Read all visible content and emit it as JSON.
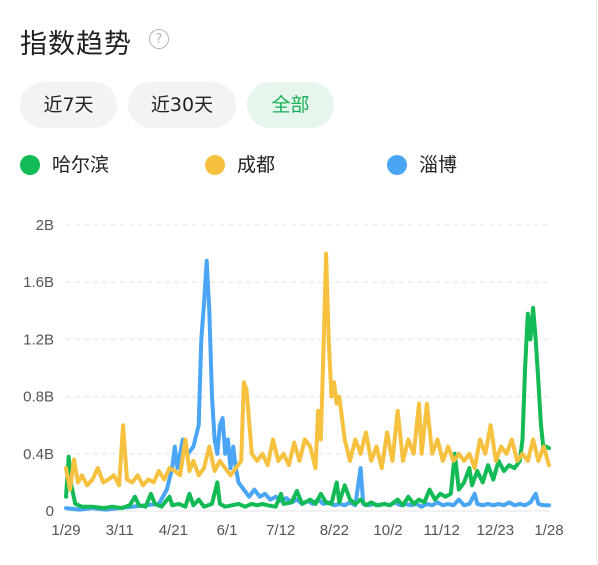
{
  "header": {
    "title": "指数趋势",
    "help_glyph": "?"
  },
  "tabs": [
    {
      "label": "近7天",
      "active": false
    },
    {
      "label": "近30天",
      "active": false
    },
    {
      "label": "全部",
      "active": true
    }
  ],
  "colors": {
    "harbin": "#12bb55",
    "chengdu": "#f7c140",
    "zibo": "#4aa6f5",
    "active_tab": "#14b055"
  },
  "chart_data": {
    "type": "line",
    "x_ticks": [
      "1/29",
      "3/11",
      "4/21",
      "6/1",
      "7/12",
      "8/22",
      "10/2",
      "11/12",
      "12/23",
      "1/28"
    ],
    "y_ticks": [
      "0",
      "0.4B",
      "0.8B",
      "1.2B",
      "1.6B",
      "2B"
    ],
    "ylim": [
      0,
      2
    ],
    "y_unit": "B",
    "x_range_days": [
      0,
      364
    ],
    "grid": true,
    "legend_position": "top",
    "series": [
      {
        "name": "哈尔滨",
        "color": "#12bb55",
        "points": [
          [
            0,
            0.1
          ],
          [
            2,
            0.38
          ],
          [
            4,
            0.18
          ],
          [
            7,
            0.05
          ],
          [
            12,
            0.03
          ],
          [
            20,
            0.03
          ],
          [
            28,
            0.02
          ],
          [
            35,
            0.03
          ],
          [
            42,
            0.02
          ],
          [
            48,
            0.04
          ],
          [
            52,
            0.1
          ],
          [
            55,
            0.04
          ],
          [
            60,
            0.03
          ],
          [
            64,
            0.12
          ],
          [
            67,
            0.05
          ],
          [
            72,
            0.03
          ],
          [
            78,
            0.1
          ],
          [
            80,
            0.04
          ],
          [
            85,
            0.05
          ],
          [
            90,
            0.03
          ],
          [
            93,
            0.12
          ],
          [
            96,
            0.04
          ],
          [
            100,
            0.08
          ],
          [
            104,
            0.03
          ],
          [
            110,
            0.05
          ],
          [
            114,
            0.2
          ],
          [
            116,
            0.05
          ],
          [
            120,
            0.03
          ],
          [
            125,
            0.04
          ],
          [
            130,
            0.05
          ],
          [
            135,
            0.03
          ],
          [
            140,
            0.05
          ],
          [
            144,
            0.04
          ],
          [
            148,
            0.05
          ],
          [
            152,
            0.04
          ],
          [
            158,
            0.03
          ],
          [
            162,
            0.12
          ],
          [
            164,
            0.05
          ],
          [
            170,
            0.06
          ],
          [
            174,
            0.14
          ],
          [
            178,
            0.05
          ],
          [
            184,
            0.08
          ],
          [
            188,
            0.05
          ],
          [
            192,
            0.12
          ],
          [
            196,
            0.06
          ],
          [
            200,
            0.05
          ],
          [
            204,
            0.2
          ],
          [
            206,
            0.06
          ],
          [
            210,
            0.18
          ],
          [
            214,
            0.08
          ],
          [
            218,
            0.05
          ],
          [
            222,
            0.08
          ],
          [
            226,
            0.04
          ],
          [
            230,
            0.06
          ],
          [
            234,
            0.04
          ],
          [
            240,
            0.05
          ],
          [
            244,
            0.04
          ],
          [
            250,
            0.08
          ],
          [
            254,
            0.04
          ],
          [
            258,
            0.1
          ],
          [
            262,
            0.05
          ],
          [
            266,
            0.08
          ],
          [
            270,
            0.06
          ],
          [
            274,
            0.15
          ],
          [
            278,
            0.08
          ],
          [
            282,
            0.12
          ],
          [
            286,
            0.1
          ],
          [
            290,
            0.12
          ],
          [
            293,
            0.4
          ],
          [
            296,
            0.15
          ],
          [
            300,
            0.2
          ],
          [
            304,
            0.3
          ],
          [
            306,
            0.18
          ],
          [
            310,
            0.28
          ],
          [
            314,
            0.2
          ],
          [
            318,
            0.32
          ],
          [
            322,
            0.22
          ],
          [
            326,
            0.35
          ],
          [
            330,
            0.28
          ],
          [
            334,
            0.32
          ],
          [
            338,
            0.3
          ],
          [
            342,
            0.35
          ],
          [
            344,
            0.5
          ],
          [
            346,
            1.0
          ],
          [
            348,
            1.38
          ],
          [
            350,
            1.2
          ],
          [
            352,
            1.42
          ],
          [
            354,
            1.2
          ],
          [
            356,
            0.9
          ],
          [
            358,
            0.6
          ],
          [
            360,
            0.42
          ],
          [
            362,
            0.45
          ],
          [
            364,
            0.44
          ]
        ]
      },
      {
        "name": "成都",
        "color": "#f7c140",
        "points": [
          [
            0,
            0.3
          ],
          [
            3,
            0.15
          ],
          [
            6,
            0.36
          ],
          [
            9,
            0.2
          ],
          [
            12,
            0.25
          ],
          [
            16,
            0.18
          ],
          [
            20,
            0.22
          ],
          [
            24,
            0.3
          ],
          [
            28,
            0.2
          ],
          [
            32,
            0.22
          ],
          [
            36,
            0.25
          ],
          [
            40,
            0.18
          ],
          [
            43,
            0.6
          ],
          [
            46,
            0.22
          ],
          [
            50,
            0.2
          ],
          [
            54,
            0.25
          ],
          [
            58,
            0.18
          ],
          [
            62,
            0.22
          ],
          [
            66,
            0.2
          ],
          [
            70,
            0.28
          ],
          [
            74,
            0.22
          ],
          [
            78,
            0.3
          ],
          [
            82,
            0.28
          ],
          [
            86,
            0.25
          ],
          [
            90,
            0.5
          ],
          [
            93,
            0.28
          ],
          [
            96,
            0.35
          ],
          [
            100,
            0.25
          ],
          [
            104,
            0.3
          ],
          [
            108,
            0.45
          ],
          [
            112,
            0.28
          ],
          [
            116,
            0.35
          ],
          [
            120,
            0.3
          ],
          [
            124,
            0.25
          ],
          [
            128,
            0.3
          ],
          [
            132,
            0.35
          ],
          [
            134,
            0.9
          ],
          [
            136,
            0.85
          ],
          [
            140,
            0.4
          ],
          [
            144,
            0.35
          ],
          [
            148,
            0.4
          ],
          [
            152,
            0.32
          ],
          [
            156,
            0.5
          ],
          [
            160,
            0.35
          ],
          [
            164,
            0.4
          ],
          [
            168,
            0.32
          ],
          [
            172,
            0.48
          ],
          [
            176,
            0.35
          ],
          [
            180,
            0.5
          ],
          [
            184,
            0.45
          ],
          [
            188,
            0.3
          ],
          [
            190,
            0.7
          ],
          [
            192,
            0.5
          ],
          [
            194,
            1.1
          ],
          [
            196,
            1.8
          ],
          [
            198,
            1.2
          ],
          [
            200,
            0.8
          ],
          [
            202,
            0.9
          ],
          [
            204,
            0.75
          ],
          [
            206,
            0.8
          ],
          [
            210,
            0.5
          ],
          [
            214,
            0.35
          ],
          [
            218,
            0.5
          ],
          [
            222,
            0.4
          ],
          [
            226,
            0.55
          ],
          [
            230,
            0.35
          ],
          [
            234,
            0.45
          ],
          [
            238,
            0.3
          ],
          [
            242,
            0.55
          ],
          [
            246,
            0.35
          ],
          [
            250,
            0.7
          ],
          [
            254,
            0.35
          ],
          [
            258,
            0.5
          ],
          [
            262,
            0.4
          ],
          [
            266,
            0.75
          ],
          [
            268,
            0.4
          ],
          [
            272,
            0.75
          ],
          [
            276,
            0.4
          ],
          [
            280,
            0.5
          ],
          [
            284,
            0.35
          ],
          [
            288,
            0.45
          ],
          [
            292,
            0.35
          ],
          [
            296,
            0.4
          ],
          [
            300,
            0.35
          ],
          [
            304,
            0.4
          ],
          [
            308,
            0.3
          ],
          [
            312,
            0.5
          ],
          [
            316,
            0.4
          ],
          [
            320,
            0.6
          ],
          [
            324,
            0.35
          ],
          [
            328,
            0.45
          ],
          [
            332,
            0.4
          ],
          [
            336,
            0.5
          ],
          [
            340,
            0.35
          ],
          [
            344,
            0.4
          ],
          [
            348,
            0.35
          ],
          [
            352,
            0.5
          ],
          [
            356,
            0.35
          ],
          [
            360,
            0.45
          ],
          [
            364,
            0.32
          ]
        ]
      },
      {
        "name": "淄博",
        "color": "#4aa6f5",
        "points": [
          [
            0,
            0.02
          ],
          [
            10,
            0.01
          ],
          [
            20,
            0.02
          ],
          [
            30,
            0.01
          ],
          [
            40,
            0.02
          ],
          [
            50,
            0.03
          ],
          [
            60,
            0.04
          ],
          [
            70,
            0.05
          ],
          [
            76,
            0.15
          ],
          [
            80,
            0.3
          ],
          [
            82,
            0.45
          ],
          [
            84,
            0.3
          ],
          [
            88,
            0.5
          ],
          [
            92,
            0.4
          ],
          [
            96,
            0.45
          ],
          [
            100,
            0.6
          ],
          [
            102,
            1.2
          ],
          [
            104,
            1.45
          ],
          [
            106,
            1.75
          ],
          [
            108,
            1.4
          ],
          [
            110,
            0.8
          ],
          [
            112,
            0.5
          ],
          [
            114,
            0.4
          ],
          [
            116,
            0.6
          ],
          [
            118,
            0.65
          ],
          [
            120,
            0.4
          ],
          [
            122,
            0.5
          ],
          [
            124,
            0.3
          ],
          [
            126,
            0.45
          ],
          [
            128,
            0.3
          ],
          [
            130,
            0.2
          ],
          [
            134,
            0.15
          ],
          [
            138,
            0.1
          ],
          [
            142,
            0.15
          ],
          [
            146,
            0.1
          ],
          [
            150,
            0.12
          ],
          [
            154,
            0.08
          ],
          [
            158,
            0.1
          ],
          [
            162,
            0.07
          ],
          [
            166,
            0.09
          ],
          [
            170,
            0.06
          ],
          [
            174,
            0.08
          ],
          [
            178,
            0.05
          ],
          [
            182,
            0.07
          ],
          [
            186,
            0.05
          ],
          [
            190,
            0.08
          ],
          [
            194,
            0.05
          ],
          [
            198,
            0.06
          ],
          [
            202,
            0.04
          ],
          [
            206,
            0.05
          ],
          [
            210,
            0.04
          ],
          [
            214,
            0.06
          ],
          [
            218,
            0.04
          ],
          [
            222,
            0.3
          ],
          [
            224,
            0.05
          ],
          [
            228,
            0.04
          ],
          [
            232,
            0.05
          ],
          [
            236,
            0.04
          ],
          [
            240,
            0.05
          ],
          [
            244,
            0.04
          ],
          [
            248,
            0.06
          ],
          [
            252,
            0.04
          ],
          [
            256,
            0.05
          ],
          [
            260,
            0.04
          ],
          [
            264,
            0.05
          ],
          [
            268,
            0.03
          ],
          [
            272,
            0.05
          ],
          [
            276,
            0.04
          ],
          [
            280,
            0.06
          ],
          [
            284,
            0.04
          ],
          [
            288,
            0.05
          ],
          [
            292,
            0.04
          ],
          [
            296,
            0.08
          ],
          [
            300,
            0.04
          ],
          [
            304,
            0.05
          ],
          [
            308,
            0.12
          ],
          [
            310,
            0.05
          ],
          [
            314,
            0.04
          ],
          [
            318,
            0.05
          ],
          [
            322,
            0.04
          ],
          [
            326,
            0.05
          ],
          [
            330,
            0.04
          ],
          [
            334,
            0.06
          ],
          [
            338,
            0.04
          ],
          [
            342,
            0.05
          ],
          [
            346,
            0.04
          ],
          [
            350,
            0.06
          ],
          [
            354,
            0.12
          ],
          [
            356,
            0.05
          ],
          [
            360,
            0.04
          ],
          [
            364,
            0.04
          ]
        ]
      }
    ]
  }
}
